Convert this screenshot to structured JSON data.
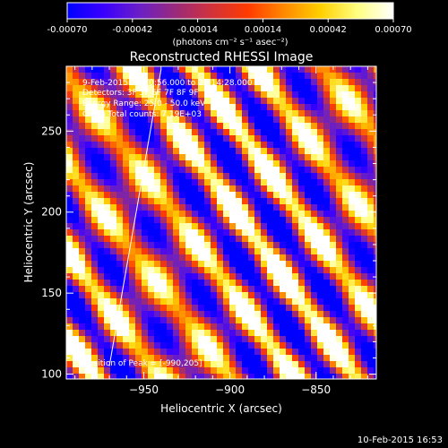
{
  "colorbar": {
    "ticks": [
      "-0.00070",
      "-0.00042",
      "-0.00014",
      "0.00014",
      "0.00042",
      "0.00070"
    ],
    "unit_label": "(photons cm⁻² s⁻¹ asec⁻²)",
    "colors": [
      "#0000ff",
      "#3a00ff",
      "#6b1fc6",
      "#9b2a7a",
      "#d2323a",
      "#ff3b00",
      "#ff8a00",
      "#ffd000",
      "#ffff80",
      "#ffffff"
    ]
  },
  "chart_data": {
    "type": "heatmap",
    "title": "Reconstructed RHESSI Image",
    "xlabel": "Heliocentric X (arcsec)",
    "ylabel": "Heliocentric Y (arcsec)",
    "xlim": [
      -995,
      -815
    ],
    "ylim": [
      97,
      290
    ],
    "xticks": [
      -950,
      -900,
      -850
    ],
    "yticks": [
      100,
      150,
      200,
      250
    ],
    "x_tick_labels": [
      "−950",
      "−900",
      "−850"
    ],
    "y_tick_labels": [
      "100",
      "150",
      "200",
      "250"
    ],
    "annotations": {
      "time_range": "9-Feb-2015 22:10:56.000 to 22:14:28.000",
      "detectors": "Detectors: 3F 5F 6F 7F 8F 9F",
      "energy_range": "Energy Range: 25.0 - 50.0 keV",
      "clean": "Clean     Total counts: 7.19E+03",
      "peak": "Position of Peak = [-990,205]"
    },
    "stripe_pattern": {
      "description_free": true,
      "band_spacing_arcsec": 31,
      "band_direction_deg": -55,
      "peak_position": [
        -990,
        205
      ]
    },
    "overlay_line": {
      "x": [
        -970,
        -940
      ],
      "y": [
        105,
        288
      ]
    }
  },
  "footer": {
    "timestamp": "10-Feb-2015 16:53"
  }
}
